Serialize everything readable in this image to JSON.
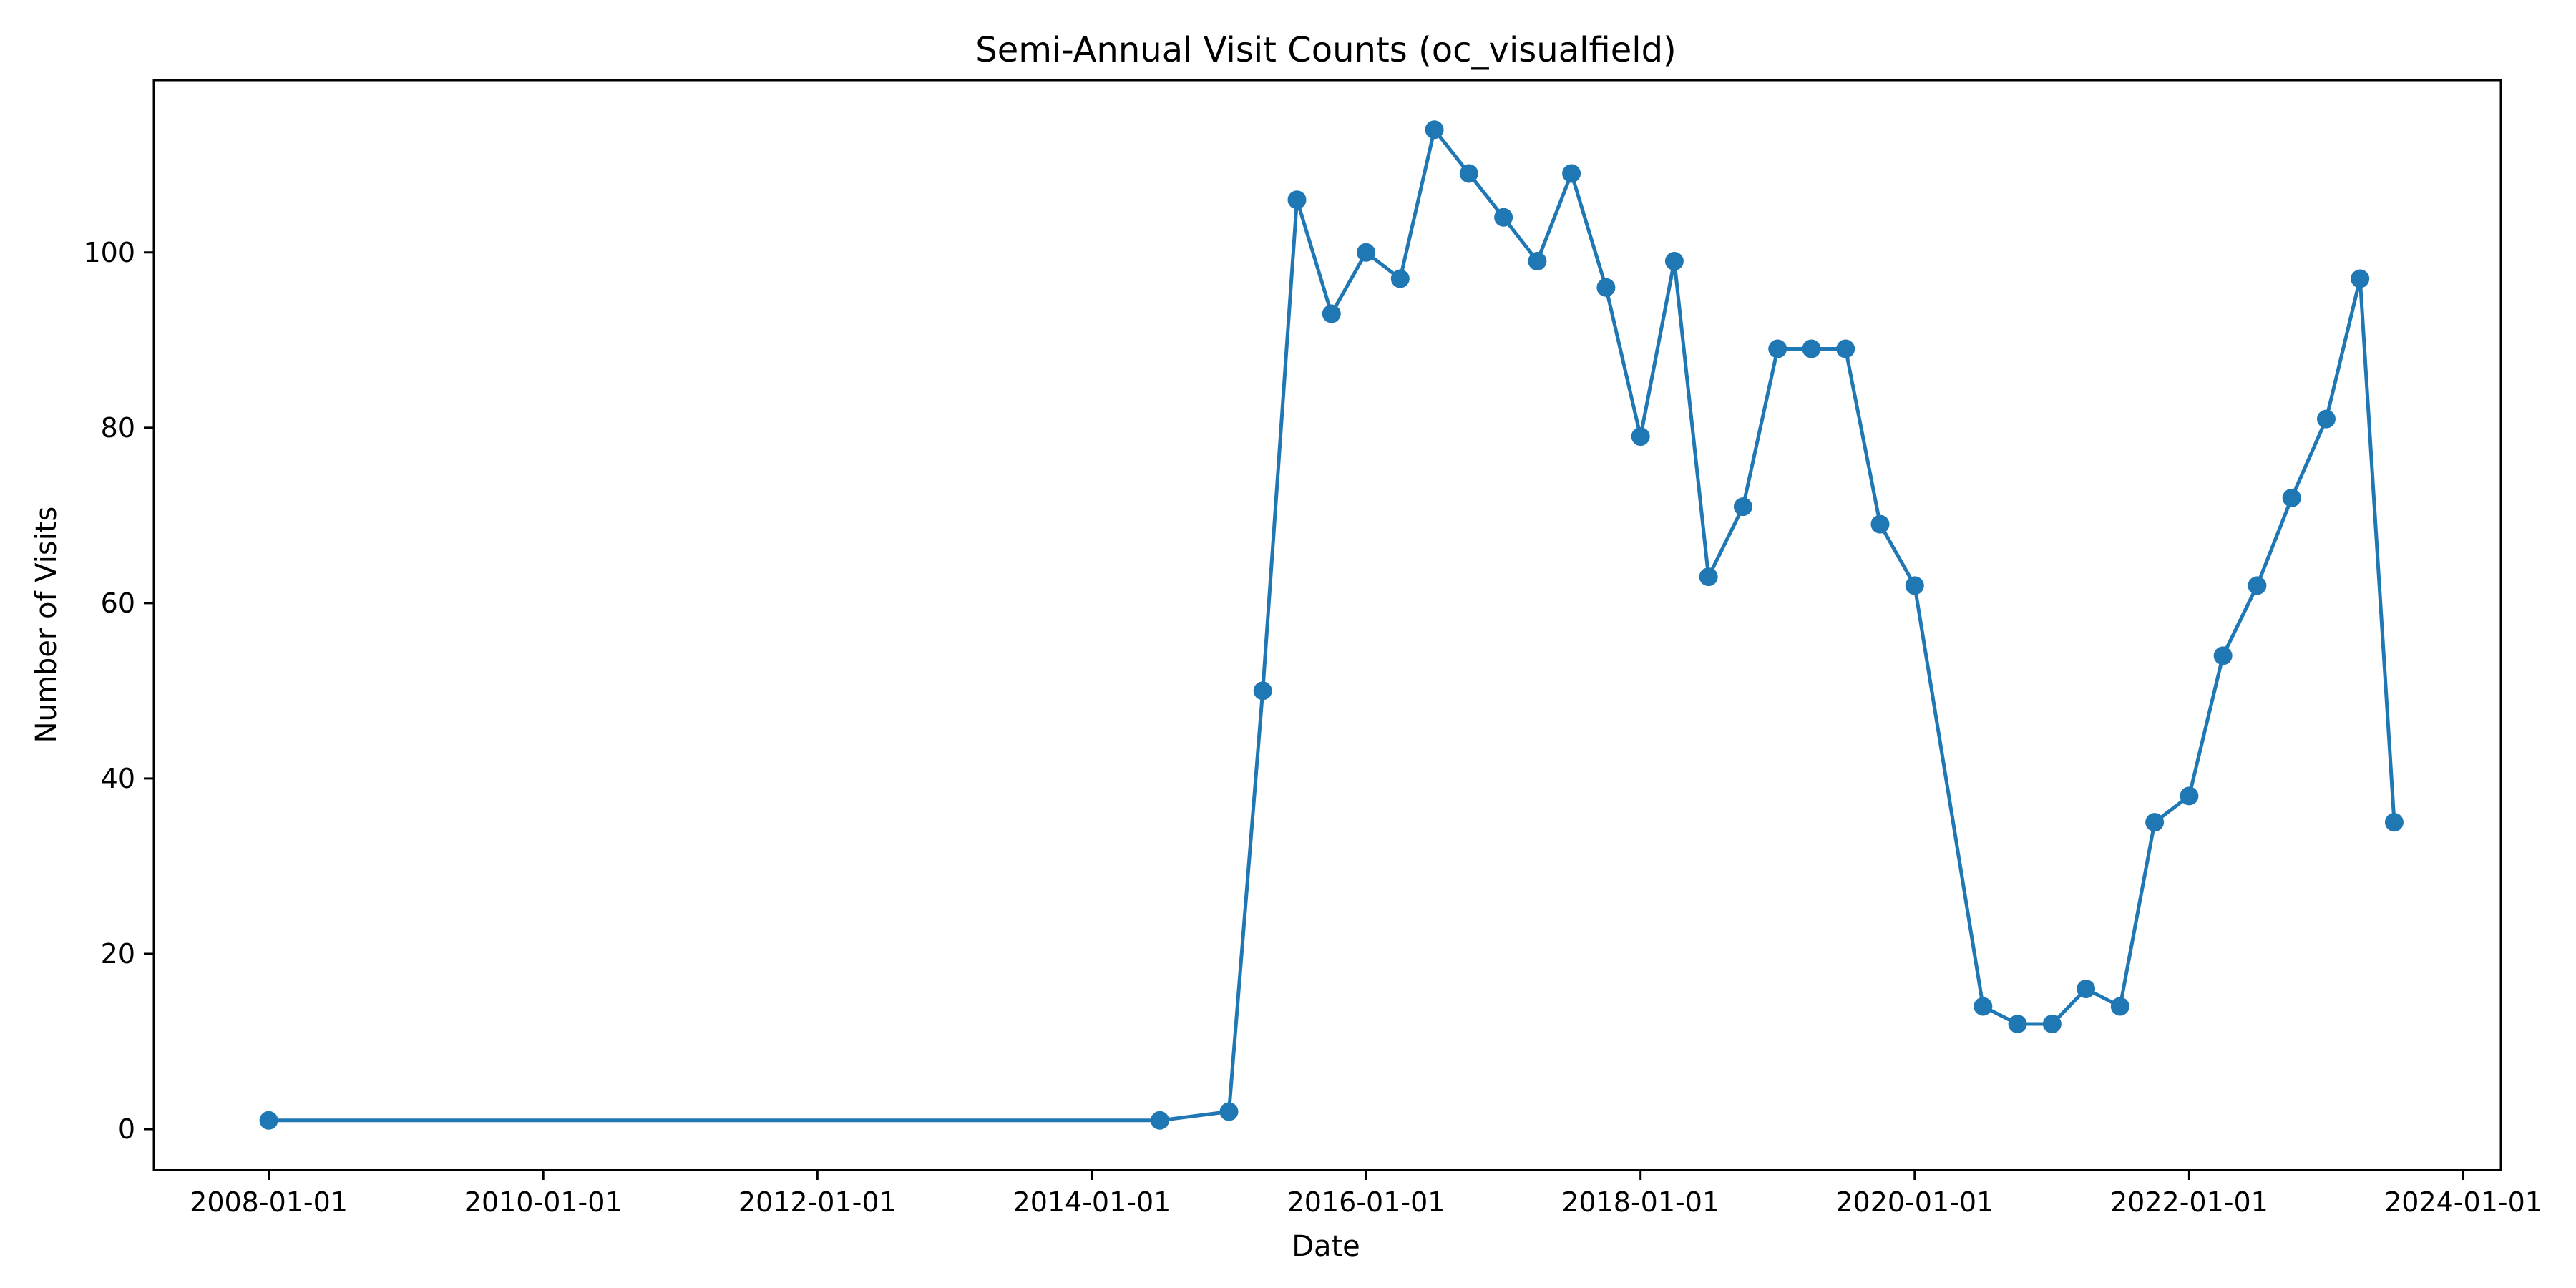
{
  "chart_data": {
    "type": "line",
    "title": "Semi-Annual Visit Counts (oc_visualfield)",
    "xlabel": "Date",
    "ylabel": "Number of Visits",
    "x_ticks": [
      "2008-01-01",
      "2010-01-01",
      "2012-01-01",
      "2014-01-01",
      "2016-01-01",
      "2018-01-01",
      "2020-01-01",
      "2022-01-01",
      "2024-01-01"
    ],
    "y_ticks": [
      0,
      20,
      40,
      60,
      80,
      100
    ],
    "xlim": [
      "2007-03-01",
      "2024-04-10"
    ],
    "ylim": [
      -4.65,
      119.65
    ],
    "grid": false,
    "color": "#1f77b4",
    "series": [
      {
        "x": [
          "2008-01-01",
          "2014-07-01",
          "2015-01-01",
          "2015-04-01",
          "2015-07-01",
          "2015-10-01",
          "2016-01-01",
          "2016-04-01",
          "2016-07-01",
          "2016-10-01",
          "2017-01-01",
          "2017-04-01",
          "2017-07-01",
          "2017-10-01",
          "2018-01-01",
          "2018-04-01",
          "2018-07-01",
          "2018-10-01",
          "2019-01-01",
          "2019-04-01",
          "2019-07-01",
          "2019-10-01",
          "2020-01-01",
          "2020-07-01",
          "2020-10-01",
          "2021-01-01",
          "2021-04-01",
          "2021-07-01",
          "2021-10-01",
          "2022-01-01",
          "2022-04-01",
          "2022-07-01",
          "2022-10-01",
          "2023-01-01",
          "2023-04-01",
          "2023-07-01"
        ],
        "values": [
          1,
          1,
          2,
          50,
          106,
          93,
          100,
          97,
          114,
          109,
          104,
          99,
          109,
          96,
          79,
          99,
          63,
          71,
          89,
          89,
          89,
          69,
          62,
          14,
          12,
          12,
          16,
          14,
          35,
          38,
          54,
          62,
          72,
          81,
          97,
          35
        ]
      }
    ]
  }
}
